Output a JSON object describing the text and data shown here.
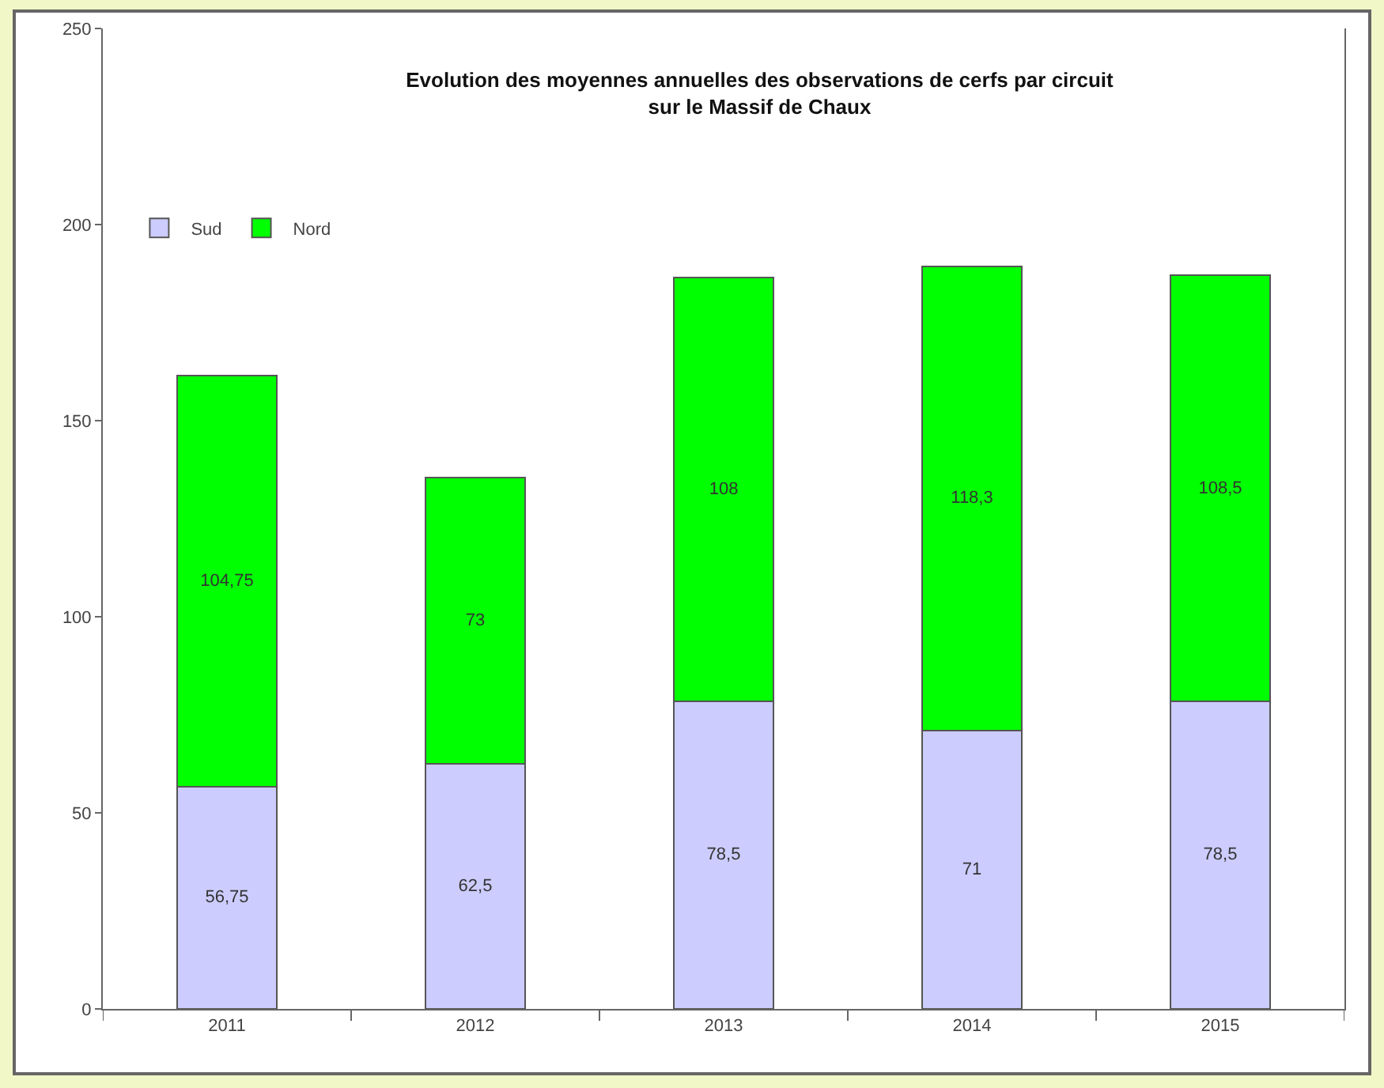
{
  "chart_data": {
    "type": "bar",
    "title": "Evolution des moyennes annuelles des observations de cerfs par circuit\nsur le Massif de Chaux",
    "categories": [
      "2011",
      "2012",
      "2013",
      "2014",
      "2015"
    ],
    "stacked": true,
    "series": [
      {
        "name": "Sud",
        "color": "#ccccff",
        "values": [
          56.75,
          62.5,
          78.5,
          71,
          78.5
        ],
        "value_labels": [
          "56,75",
          "62,5",
          "78,5",
          "71",
          "78,5"
        ]
      },
      {
        "name": "Nord",
        "color": "#00ff00",
        "values": [
          104.75,
          73,
          108,
          118.3,
          108.5
        ],
        "value_labels": [
          "104,75",
          "73",
          "108",
          "118,3",
          "108,5"
        ]
      }
    ],
    "ylim": [
      0,
      250
    ],
    "yticks": [
      0,
      50,
      100,
      150,
      200,
      250
    ],
    "grid": false,
    "legend": "top left"
  }
}
